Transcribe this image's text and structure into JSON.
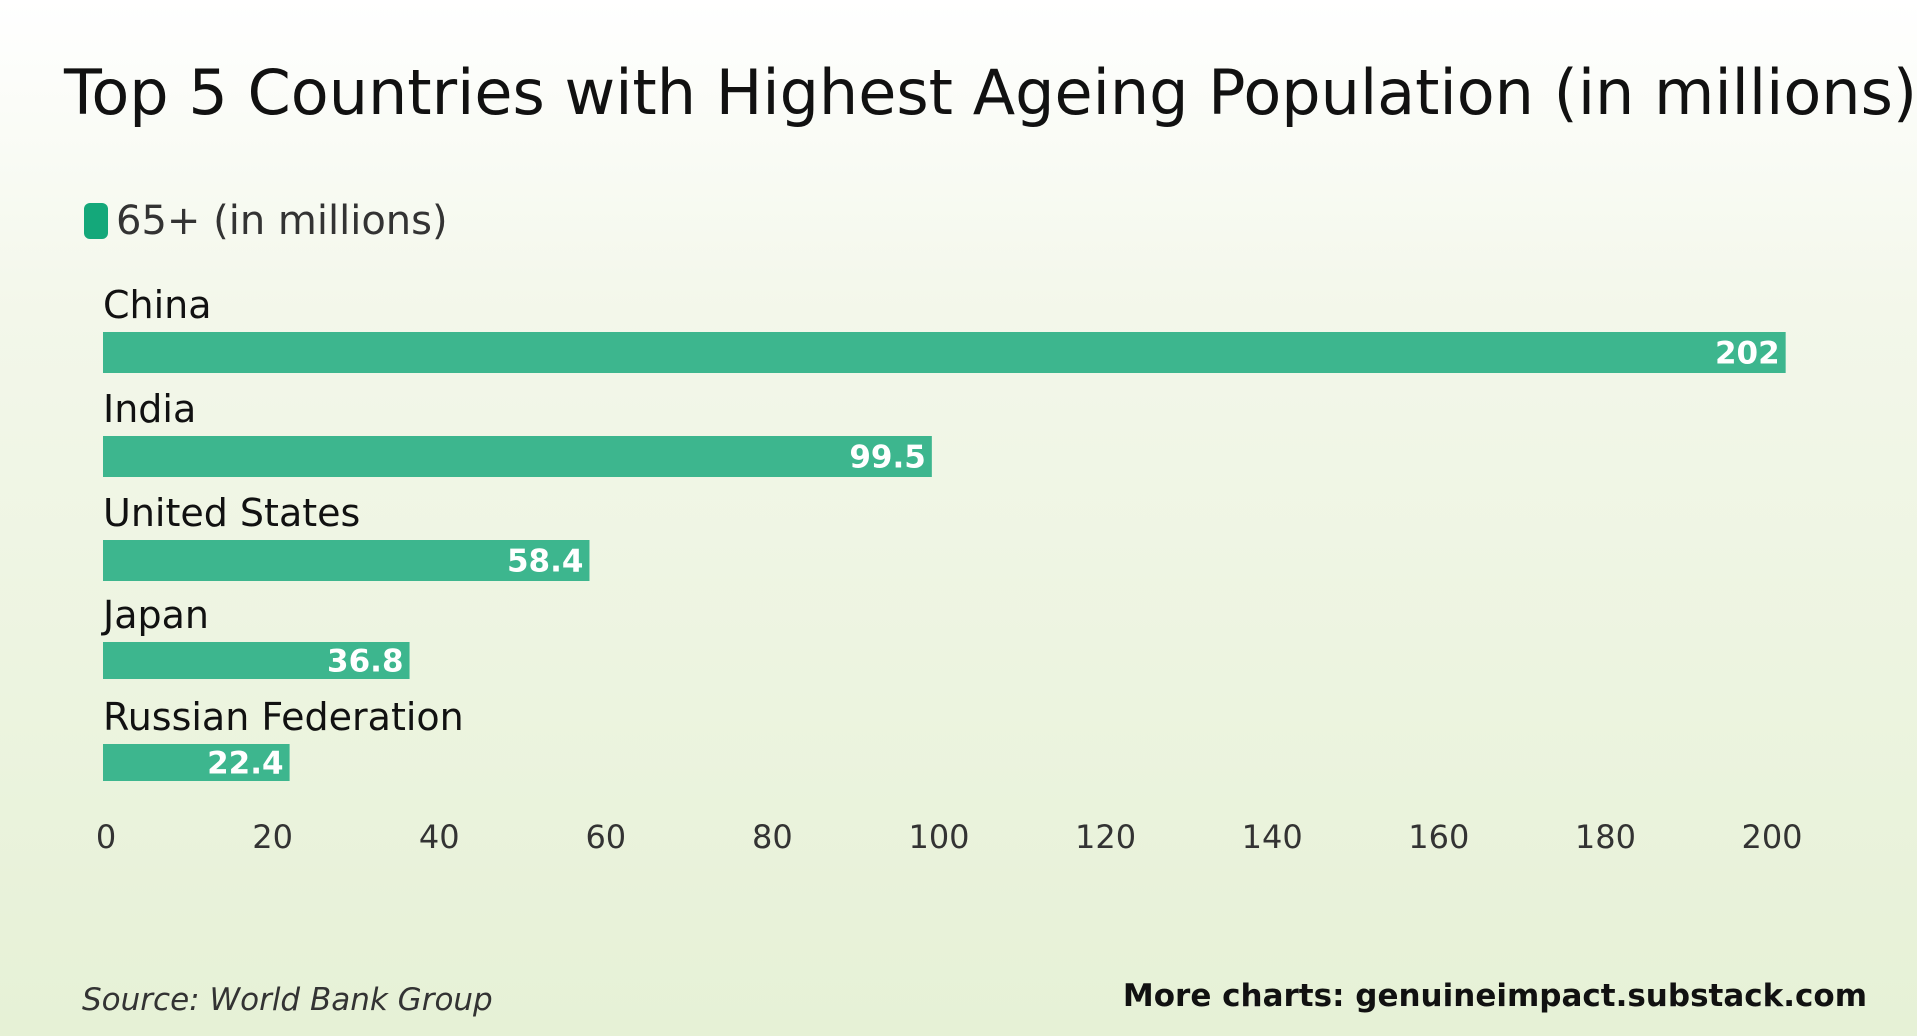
{
  "header": {
    "title": "Top 5 Countries with Highest Ageing Population  (in millions)"
  },
  "legend": {
    "label": "65+ (in millions)"
  },
  "colors": {
    "bar": "#3db68e",
    "legend_swatch": "#14a87a",
    "bar_label": "#ffffff",
    "axis_text": "#333333"
  },
  "chart_data": {
    "type": "bar",
    "orientation": "horizontal",
    "categories": [
      "China",
      "India",
      "United States",
      "Japan",
      "Russian Federation"
    ],
    "series": [
      {
        "name": "65+ (in millions)",
        "values": [
          202,
          99.5,
          58.4,
          36.8,
          22.4
        ]
      }
    ],
    "data_labels": [
      "202",
      "99.5",
      "58.4",
      "36.8",
      "22.4"
    ],
    "xlim": [
      0,
      210
    ],
    "xticks": [
      0,
      20,
      40,
      60,
      80,
      100,
      120,
      140,
      160,
      180,
      200
    ],
    "grid": false,
    "legend_position": "top-left"
  },
  "footer": {
    "source": "Source:  World Bank Group",
    "credit": "More charts: genuineimpact.substack.com"
  }
}
